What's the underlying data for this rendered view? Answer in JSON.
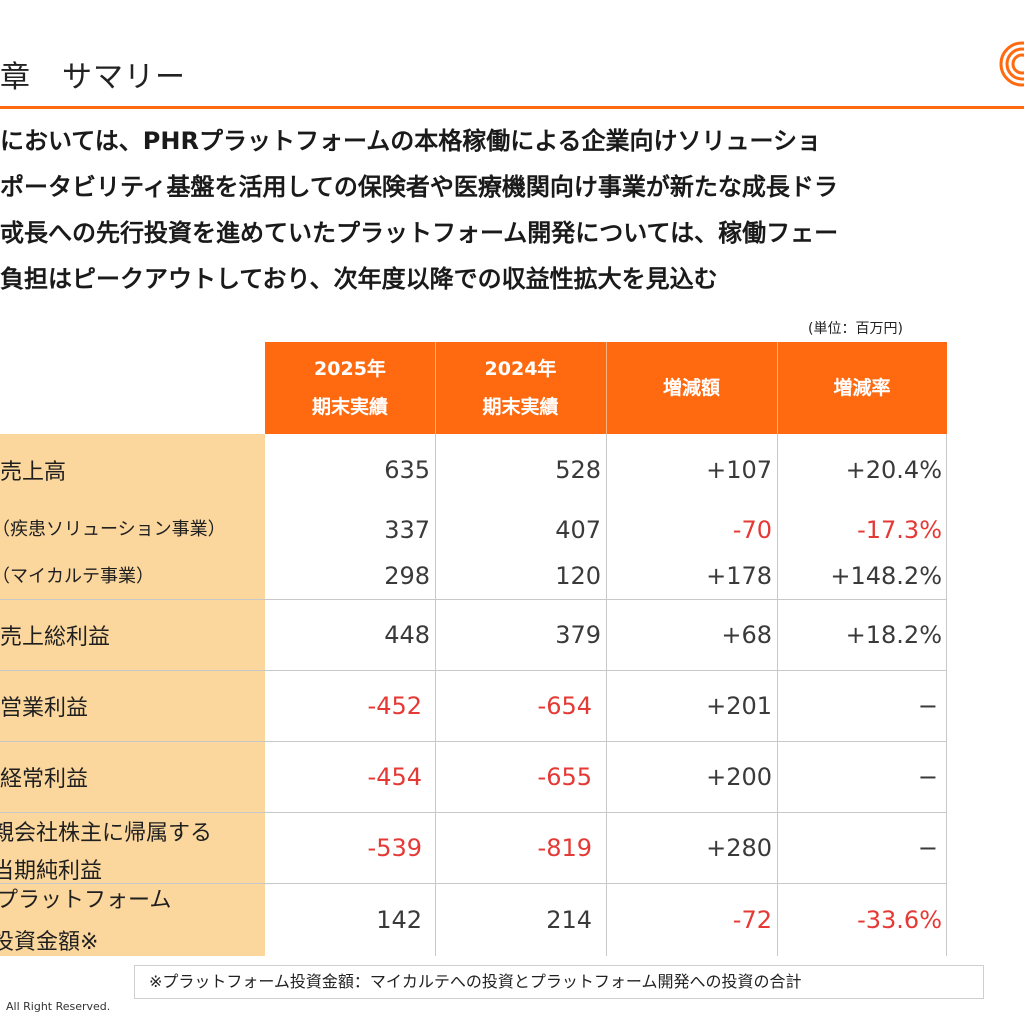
{
  "header": {
    "title": "章　サマリー"
  },
  "colors": {
    "accent_orange": "#ff6a10",
    "label_bg": "#fbd79d",
    "negative_red": "#e53935"
  },
  "summary_lines": [
    "においては、PHRプラットフォームの本格稼働による企業向けソリューショ",
    "ポータビリティ基盤を活用しての保険者や医療機関向け事業が新たな成長ドラ",
    "戓長への先行投資を進めていたプラットフォーム開発については、稼働フェー",
    "負担はピークアウトしており、次年度以降での収益性拡大を見込む"
  ],
  "unit_note": "(単位：百万円)",
  "table": {
    "headers": {
      "col1_line1": "2025年",
      "col1_line2": "期末実績",
      "col2_line1": "2024年",
      "col2_line2": "期末実績",
      "col3": "増減額",
      "col4": "増減率"
    },
    "rows": {
      "sales": {
        "label": "売上高",
        "v2025": "635",
        "v2024": "528",
        "diff": "+107",
        "rate": "+20.4%"
      },
      "disease": {
        "label": "（疾患ソリューション事業）",
        "v2025": "337",
        "v2024": "407",
        "diff": "-70",
        "rate": "-17.3%"
      },
      "mykarte": {
        "label": "（マイカルテ事業）",
        "v2025": "298",
        "v2024": "120",
        "diff": "+178",
        "rate": "+148.2%"
      },
      "gross": {
        "label": "売上総利益",
        "v2025": "448",
        "v2024": "379",
        "diff": "+68",
        "rate": "+18.2%"
      },
      "operating": {
        "label": "営業利益",
        "v2025": "-452",
        "v2024": "-654",
        "diff": "+201",
        "rate": "−"
      },
      "ordinary": {
        "label": "経常利益",
        "v2025": "-454",
        "v2024": "-655",
        "diff": "+200",
        "rate": "−"
      },
      "netincome": {
        "label_line1": "親会社株主に帰属する",
        "label_line2": "当期純利益",
        "v2025": "-539",
        "v2024": "-819",
        "diff": "+280",
        "rate": "−"
      },
      "platform": {
        "label_line1": "プラットフォーム",
        "label_line2": "投資金額※",
        "v2025": "142",
        "v2024": "214",
        "diff": "-72",
        "rate": "-33.6%"
      }
    }
  },
  "footnote": "※プラットフォーム投資金額：マイカルテへの投資とプラットフォーム開発への投資の合計",
  "copyright": "All Right Reserved."
}
